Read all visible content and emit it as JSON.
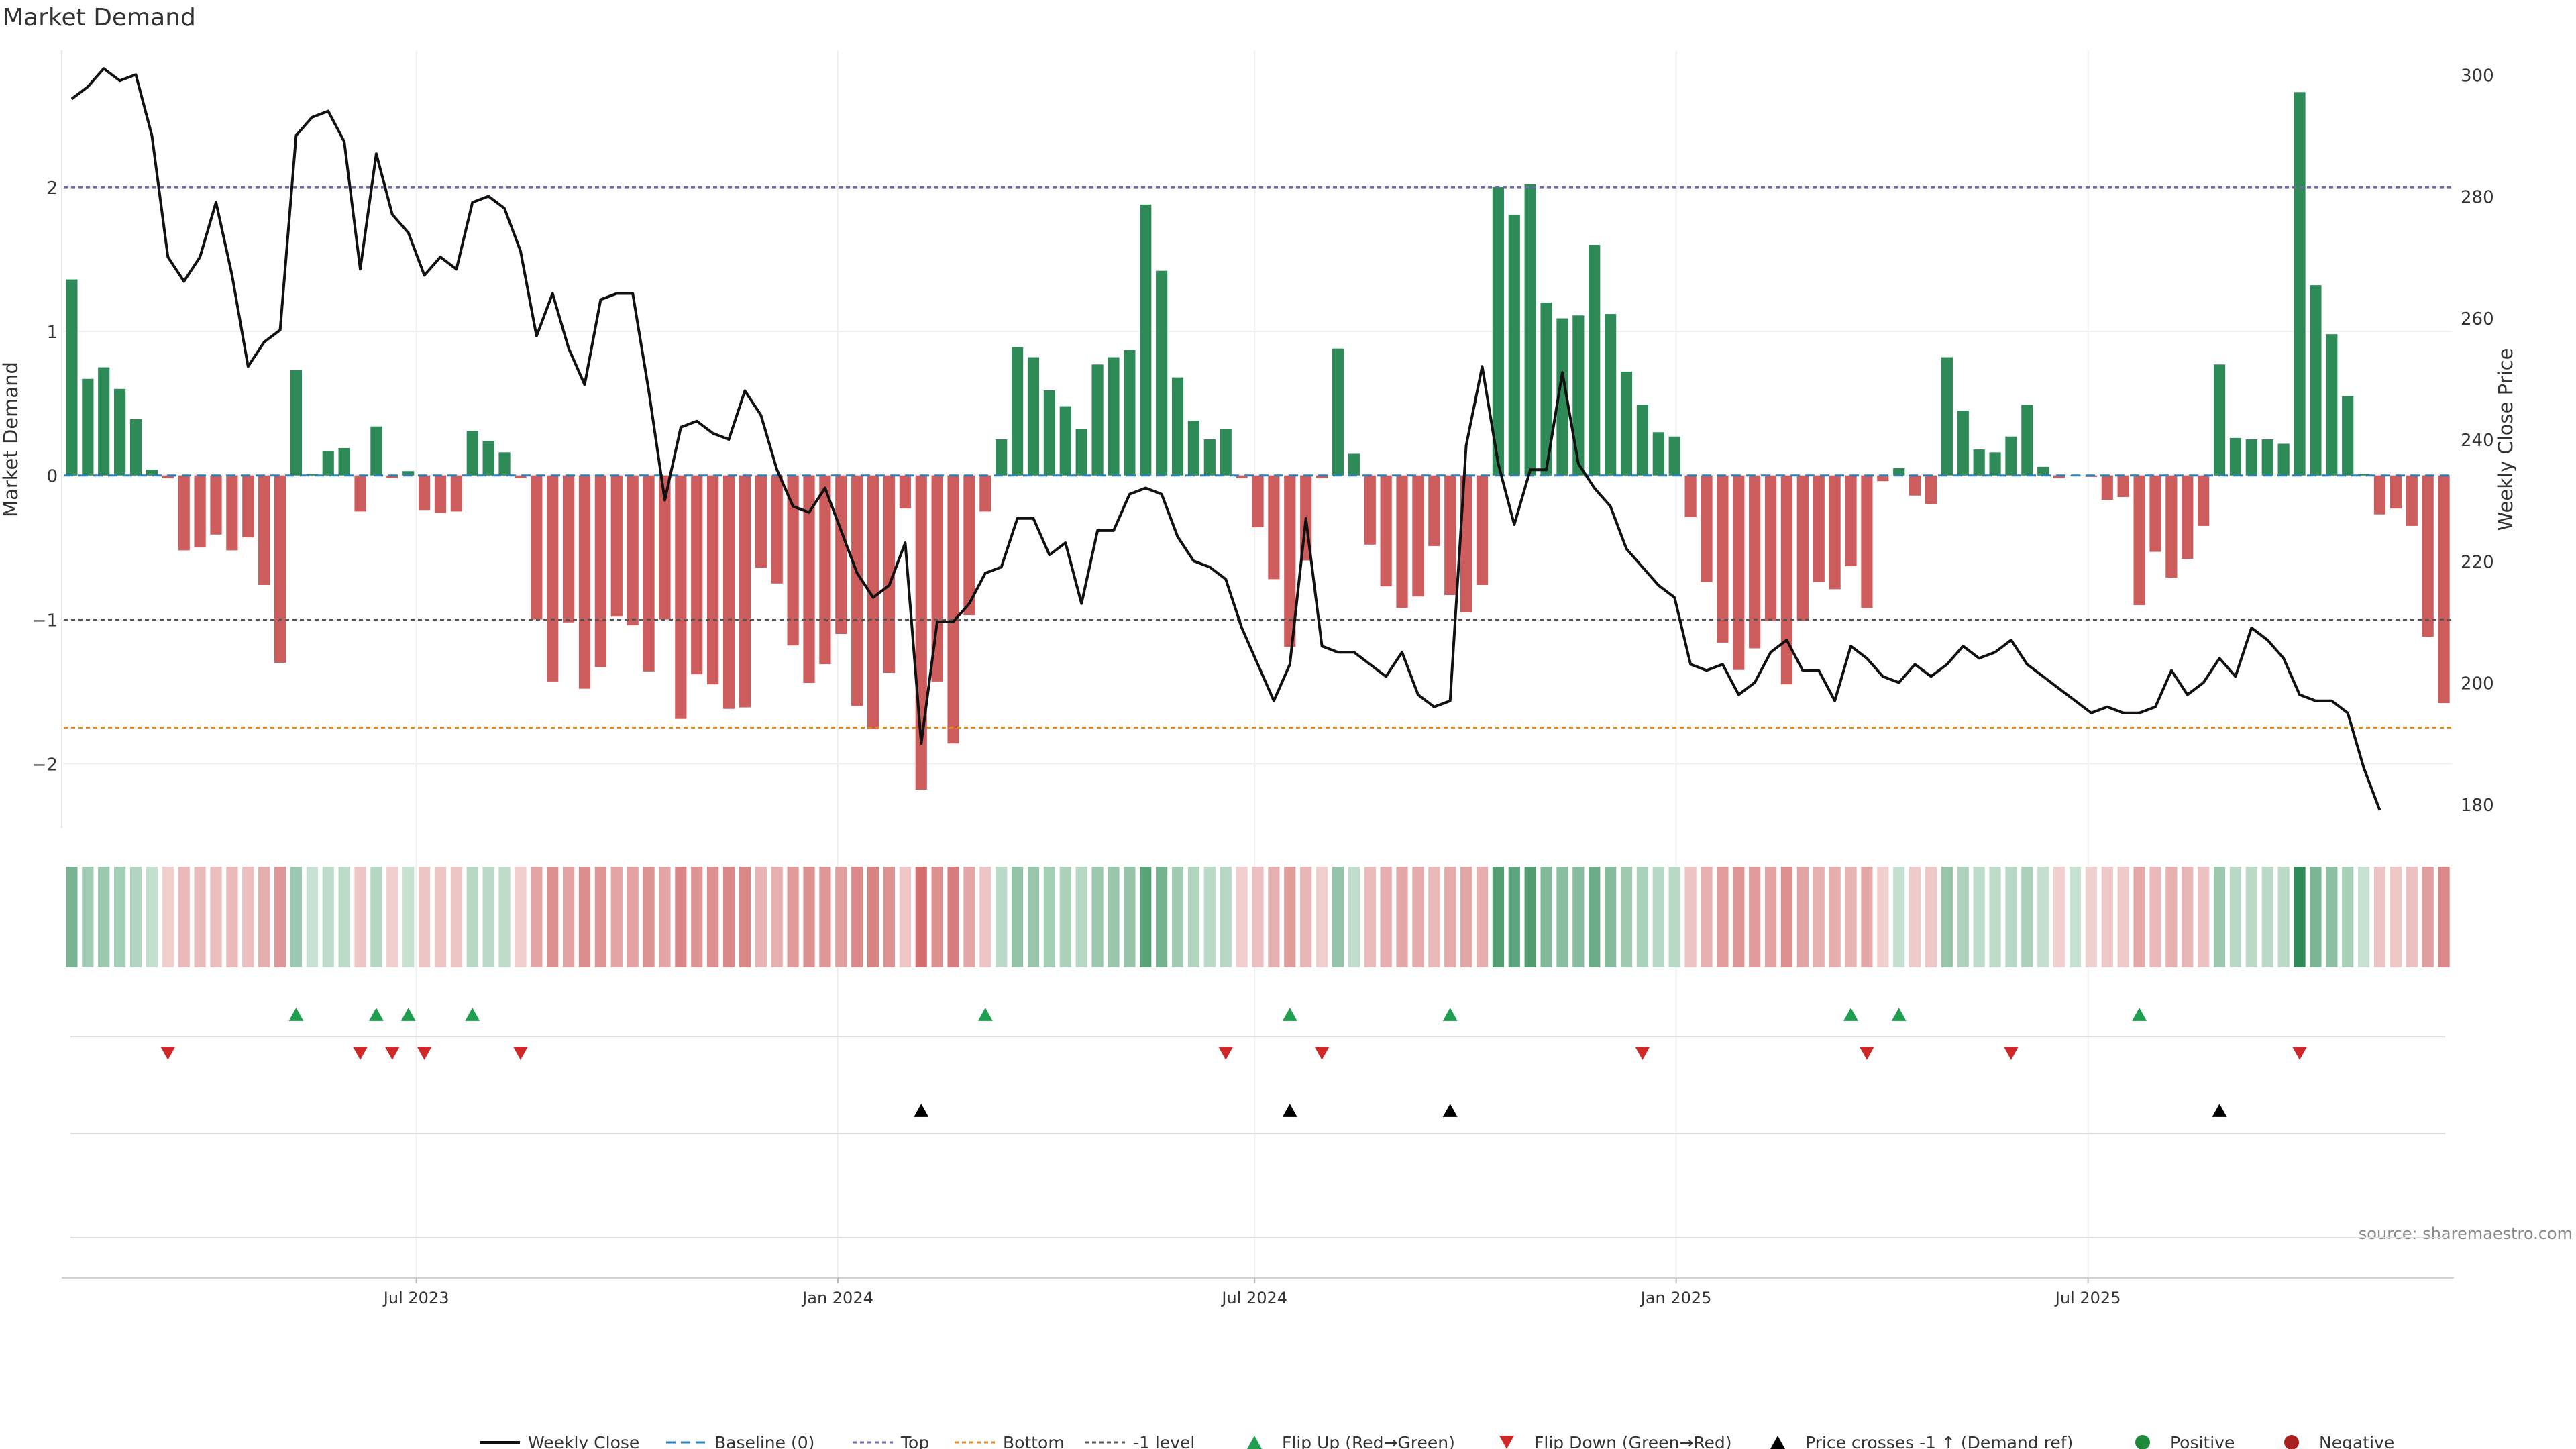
{
  "chart_data": {
    "type": "bar",
    "title": "Market Demand",
    "ylabel": "Market Demand",
    "y2label": "Weekly Close Price",
    "ylim": [
      -2.45,
      2.95
    ],
    "y2lim": [
      176,
      304
    ],
    "y_ticks": [
      -2,
      -1,
      0,
      1,
      2
    ],
    "y2_ticks": [
      180,
      200,
      220,
      240,
      260,
      280,
      300
    ],
    "x_ticks": [
      {
        "label": "Jul 2023",
        "week": 22
      },
      {
        "label": "Jan 2024",
        "week": 48.3
      },
      {
        "label": "Jul 2024",
        "week": 74.3
      },
      {
        "label": "Jan 2025",
        "week": 100.6
      },
      {
        "label": "Jul 2025",
        "week": 126.3
      }
    ],
    "reference_lines": [
      {
        "name": "Top",
        "value": 2,
        "color": "#6a6aa8"
      },
      {
        "name": "-1 level",
        "value": -1,
        "color": "#555555"
      },
      {
        "name": "Bottom",
        "value": -1.75,
        "color": "#e08a1e"
      }
    ],
    "series": [
      {
        "name": "Market Demand",
        "values": [
          1.36,
          0.67,
          0.75,
          0.6,
          0.39,
          0.04,
          -0.02,
          -0.52,
          -0.5,
          -0.41,
          -0.52,
          -0.43,
          -0.76,
          -1.3,
          0.73,
          0.01,
          0.17,
          0.19,
          -0.25,
          0.34,
          -0.02,
          0.03,
          -0.24,
          -0.26,
          -0.25,
          0.31,
          0.24,
          0.16,
          -0.02,
          -1.0,
          -1.43,
          -1.02,
          -1.48,
          -1.33,
          -0.98,
          -1.04,
          -1.36,
          -1.0,
          -1.69,
          -1.38,
          -1.45,
          -1.62,
          -1.61,
          -0.64,
          -0.75,
          -1.18,
          -1.44,
          -1.31,
          -1.1,
          -1.6,
          -1.76,
          -1.37,
          -0.23,
          -2.18,
          -1.43,
          -1.86,
          -0.97,
          -0.25,
          0.25,
          0.89,
          0.82,
          0.59,
          0.48,
          0.32,
          0.77,
          0.82,
          0.87,
          1.88,
          1.42,
          0.68,
          0.38,
          0.25,
          0.32,
          -0.02,
          -0.36,
          -0.72,
          -1.19,
          -0.59,
          -0.02,
          0.88,
          0.15,
          -0.48,
          -0.77,
          -0.92,
          -0.84,
          -0.49,
          -0.83,
          -0.95,
          -0.76,
          2.0,
          1.81,
          2.02,
          1.2,
          1.09,
          1.11,
          1.6,
          1.12,
          0.72,
          0.49,
          0.3,
          0.27,
          -0.29,
          -0.74,
          -1.16,
          -1.35,
          -1.2,
          -1.01,
          -1.45,
          -1.01,
          -0.74,
          -0.79,
          -0.63,
          -0.92,
          -0.04,
          0.05,
          -0.14,
          -0.2,
          0.82,
          0.45,
          0.18,
          0.16,
          0.27,
          0.49,
          0.06,
          -0.02,
          0.0,
          -0.01,
          -0.17,
          -0.15,
          -0.9,
          -0.53,
          -0.71,
          -0.58,
          -0.35,
          0.77,
          0.26,
          0.25,
          0.25,
          0.22,
          2.66,
          1.32,
          0.98,
          0.55,
          0.01,
          -0.27,
          -0.23,
          -0.35,
          -1.12,
          -1.58
        ]
      },
      {
        "name": "Weekly Close",
        "values": [
          296,
          298,
          301,
          299,
          300,
          290,
          270,
          266,
          270,
          279,
          267,
          252,
          256,
          258,
          290,
          293,
          294,
          289,
          268,
          287,
          277,
          274,
          267,
          270,
          268,
          279,
          280,
          278,
          271,
          257,
          264,
          255,
          249,
          263,
          264,
          264,
          248,
          230,
          242,
          243,
          241,
          240,
          248,
          244,
          235,
          229,
          228,
          232,
          225,
          218,
          214,
          216,
          223,
          190,
          210,
          210,
          213,
          218,
          219,
          227,
          227,
          221,
          223,
          213,
          225,
          225,
          231,
          232,
          231,
          224,
          220,
          219,
          217,
          209,
          203,
          197,
          203,
          227,
          206,
          205,
          205,
          203,
          201,
          205,
          198,
          196,
          197,
          239,
          252,
          236,
          226,
          235,
          235,
          251,
          236,
          232,
          229,
          222,
          219,
          216,
          214,
          203,
          202,
          203,
          198,
          200,
          205,
          207,
          202,
          202,
          197,
          206,
          204,
          201,
          200,
          203,
          201,
          203,
          206,
          204,
          205,
          207,
          203,
          201,
          199,
          197,
          195,
          196,
          195,
          195,
          196,
          202,
          198,
          200,
          204,
          201,
          209,
          207,
          204,
          198,
          197,
          197,
          195,
          186,
          179
        ]
      }
    ],
    "event_rows": {
      "flip_up_weeks": [
        14,
        19,
        21,
        25,
        57,
        76,
        86,
        111,
        114,
        129
      ],
      "flip_down_weeks": [
        6,
        18,
        20,
        22,
        28,
        72,
        78,
        98,
        112,
        121,
        139
      ],
      "price_cross_weeks": [
        53,
        76,
        86,
        134
      ]
    },
    "legend": [
      {
        "label": "Weekly Close",
        "kind": "line",
        "color": "#111111"
      },
      {
        "label": "Baseline (0)",
        "kind": "dash",
        "color": "#2e7fb8"
      },
      {
        "label": "Top",
        "kind": "dot",
        "color": "#6a6aa8"
      },
      {
        "label": "Bottom",
        "kind": "dot",
        "color": "#e08a1e"
      },
      {
        "label": "-1 level",
        "kind": "dot",
        "color": "#555555"
      },
      {
        "label": "Flip Up (Red→Green)",
        "kind": "tri-up",
        "color": "#1f9e50"
      },
      {
        "label": "Flip Down (Green→Red)",
        "kind": "tri-down",
        "color": "#d02828"
      },
      {
        "label": "Price crosses -1 ↑ (Demand ref)",
        "kind": "tri-up",
        "color": "#000000"
      },
      {
        "label": "Positive",
        "kind": "circle",
        "color": "#1f8a3a"
      },
      {
        "label": "Negative",
        "kind": "circle",
        "color": "#a82020"
      }
    ],
    "source": "source: sharemaestro.com",
    "colors": {
      "positive": "#2e8b57",
      "negative": "#cd5c5c"
    }
  }
}
